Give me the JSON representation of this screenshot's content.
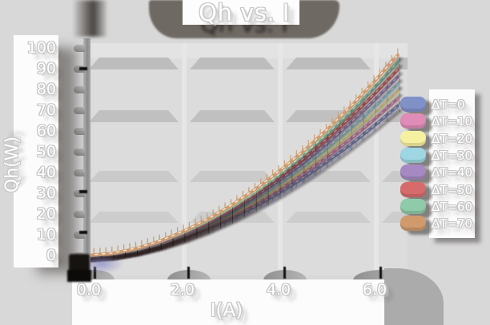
{
  "title": "Qh vs. I",
  "y_axis": {
    "title": "Qh(W)",
    "tick_labels": [
      "100",
      "90",
      "80",
      "70",
      "60",
      "50",
      "40",
      "30",
      "20",
      "10",
      "0"
    ]
  },
  "x_axis": {
    "title": "I(A)",
    "tick_labels": [
      "0.0",
      "2.0",
      "4.0",
      "6.0"
    ]
  },
  "legend": {
    "entries": [
      {
        "label": "ΔT=0",
        "color": "#8091c8"
      },
      {
        "label": "ΔT=10",
        "color": "#df8db8"
      },
      {
        "label": "ΔT=20",
        "color": "#f5f1a0"
      },
      {
        "label": "ΔT=30",
        "color": "#9ed7e3"
      },
      {
        "label": "ΔT=40",
        "color": "#a689c2"
      },
      {
        "label": "ΔT=50",
        "color": "#d76b6c"
      },
      {
        "label": "ΔT=60",
        "color": "#90cba9"
      },
      {
        "label": "ΔT=70",
        "color": "#d09a6d"
      }
    ]
  },
  "chart_data": {
    "type": "line",
    "title": "Qh vs. I",
    "xlabel": "I(A)",
    "ylabel": "Qh(W)",
    "xlim": [
      0,
      6.7
    ],
    "ylim": [
      -10,
      101
    ],
    "x_ticks": [
      0.0,
      2.0,
      4.0,
      6.0
    ],
    "y_ticks": [
      0,
      10,
      20,
      30,
      40,
      50,
      60,
      70,
      80,
      90,
      100
    ],
    "grid": "horizontal-bands",
    "legend_position": "right",
    "x": [
      0,
      0.5,
      1.0,
      1.5,
      2.0,
      2.5,
      3.0,
      3.5,
      4.0,
      4.5,
      5.0,
      5.5,
      6.0,
      6.5
    ],
    "series": [
      {
        "name": "ΔT=0",
        "color": "#8091c8",
        "values": [
          0,
          0.7,
          2.5,
          5.1,
          8.6,
          12.9,
          17.9,
          23.6,
          30.0,
          37.1,
          44.9,
          53.3,
          62.3,
          72.0
        ]
      },
      {
        "name": "ΔT=10",
        "color": "#df8db8",
        "values": [
          0,
          0.7,
          2.6,
          5.4,
          9.0,
          13.5,
          18.8,
          24.8,
          31.5,
          39.0,
          47.1,
          55.9,
          65.4,
          75.5
        ]
      },
      {
        "name": "ΔT=20",
        "color": "#f5f1a0",
        "values": [
          0,
          0.8,
          2.7,
          5.6,
          9.5,
          14.1,
          19.6,
          25.9,
          33.0,
          40.8,
          49.3,
          58.5,
          68.4,
          79.0
        ]
      },
      {
        "name": "ΔT=30",
        "color": "#9ed7e3",
        "values": [
          0,
          0.8,
          2.8,
          5.9,
          9.9,
          14.8,
          20.5,
          27.1,
          34.4,
          42.6,
          51.4,
          61.1,
          71.4,
          82.5
        ]
      },
      {
        "name": "ΔT=40",
        "color": "#a689c2",
        "values": [
          0,
          0.8,
          3.0,
          6.1,
          10.3,
          15.4,
          21.4,
          28.2,
          35.9,
          44.4,
          53.6,
          63.7,
          74.5,
          86.0
        ]
      },
      {
        "name": "ΔT=50",
        "color": "#d76b6c",
        "values": [
          0,
          0.9,
          3.1,
          6.4,
          10.7,
          16.0,
          22.3,
          29.4,
          37.4,
          46.2,
          55.8,
          66.3,
          77.5,
          89.5
        ]
      },
      {
        "name": "ΔT=60",
        "color": "#90cba9",
        "values": [
          0,
          0.9,
          3.2,
          6.6,
          11.1,
          16.6,
          23.1,
          30.5,
          38.8,
          48.0,
          58.0,
          68.8,
          80.5,
          93.0
        ]
      },
      {
        "name": "ΔT=70",
        "color": "#d09a6d",
        "values": [
          0,
          1.0,
          3.3,
          6.9,
          11.6,
          17.3,
          24.0,
          31.7,
          40.3,
          49.8,
          60.2,
          71.4,
          83.6,
          96.5
        ]
      }
    ]
  }
}
